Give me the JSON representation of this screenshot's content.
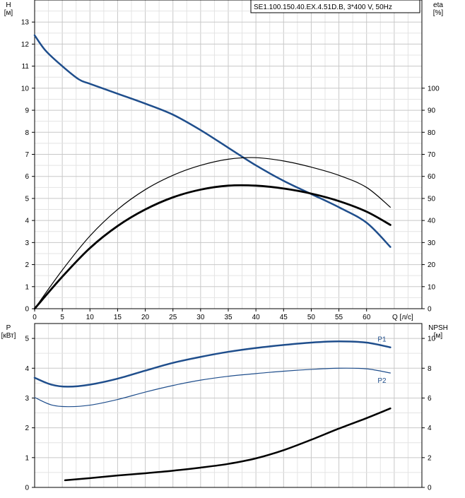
{
  "chart_data": [
    {
      "type": "line",
      "title": "SE1.100.150.40.EX.4.51D.B, 3*400 V, 50Hz",
      "xlabel": "Q [л/с]",
      "ylabel_left": "H\n[м]",
      "ylabel_right": "eta\n[%]",
      "xlim": [
        0,
        70
      ],
      "ylim": [
        0,
        14
      ],
      "ylim_right": [
        0,
        140
      ],
      "x_ticks": [
        "0",
        "5",
        "10",
        "15",
        "20",
        "25",
        "30",
        "35",
        "40",
        "45",
        "50",
        "55",
        "60"
      ],
      "y_ticks_left": [
        "0",
        "1",
        "2",
        "3",
        "4",
        "5",
        "6",
        "7",
        "8",
        "9",
        "10",
        "11",
        "12",
        "13"
      ],
      "y_ticks_right": [
        "0",
        "10",
        "20",
        "30",
        "40",
        "50",
        "60",
        "70",
        "80",
        "90",
        "100"
      ],
      "grid": true,
      "series": [
        {
          "name": "H",
          "axis": "left",
          "color": "#1f4e8c",
          "width": 2.5,
          "x": [
            0,
            2,
            5,
            8,
            10,
            15,
            20,
            25,
            30,
            35,
            40,
            45,
            50,
            55,
            60,
            64.3
          ],
          "y": [
            12.4,
            11.7,
            11.0,
            10.4,
            10.2,
            9.75,
            9.3,
            8.8,
            8.1,
            7.3,
            6.5,
            5.8,
            5.2,
            4.6,
            3.9,
            2.8
          ]
        },
        {
          "name": "",
          "axis": "right",
          "color": "#000000",
          "width": 1.2,
          "x": [
            0,
            5,
            10,
            15,
            20,
            25,
            30,
            35,
            40,
            45,
            50,
            55,
            60,
            64.3
          ],
          "y": [
            0,
            17.5,
            33,
            45,
            54,
            60.5,
            65,
            67.8,
            68.5,
            67,
            64.2,
            60.5,
            55,
            46
          ]
        },
        {
          "name": "",
          "axis": "right",
          "color": "#000000",
          "width": 2.8,
          "x": [
            0,
            5,
            10,
            15,
            20,
            25,
            30,
            35,
            40,
            45,
            50,
            55,
            60,
            64.3
          ],
          "y": [
            0,
            14.5,
            27.5,
            37.5,
            45,
            50.5,
            54,
            55.8,
            55.8,
            54.5,
            52.2,
            48.8,
            44,
            38
          ]
        }
      ]
    },
    {
      "type": "line",
      "title": "",
      "xlabel": "",
      "ylabel_left": "P\n[кВт]",
      "ylabel_right": "NPSH\n[м]",
      "xlim": [
        0,
        70
      ],
      "ylim": [
        0,
        5.5
      ],
      "ylim_right": [
        0,
        11
      ],
      "y_ticks_left": [
        "0",
        "1",
        "2",
        "3",
        "4",
        "5"
      ],
      "y_ticks_right": [
        "0",
        "2",
        "4",
        "6",
        "8",
        "10"
      ],
      "grid": true,
      "series": [
        {
          "name": "P1",
          "axis": "left",
          "color": "#1f4e8c",
          "width": 2.5,
          "x": [
            0,
            3,
            6,
            10,
            15,
            20,
            25,
            30,
            35,
            40,
            45,
            50,
            55,
            60,
            64.3
          ],
          "y": [
            3.68,
            3.45,
            3.38,
            3.45,
            3.65,
            3.92,
            4.18,
            4.38,
            4.55,
            4.68,
            4.78,
            4.86,
            4.9,
            4.86,
            4.7
          ]
        },
        {
          "name": "P2",
          "axis": "left",
          "color": "#1f4e8c",
          "width": 1.2,
          "x": [
            0,
            3,
            6,
            10,
            15,
            20,
            25,
            30,
            35,
            40,
            45,
            50,
            55,
            60,
            64.3
          ],
          "y": [
            3.02,
            2.77,
            2.71,
            2.76,
            2.95,
            3.2,
            3.42,
            3.6,
            3.73,
            3.82,
            3.9,
            3.96,
            4.0,
            3.98,
            3.84
          ]
        },
        {
          "name": "",
          "axis": "right",
          "color": "#000000",
          "width": 2.5,
          "x": [
            5.5,
            10,
            15,
            20,
            25,
            30,
            35,
            40,
            45,
            50,
            55,
            60,
            64.3
          ],
          "y": [
            0.48,
            0.62,
            0.8,
            0.95,
            1.12,
            1.33,
            1.58,
            1.95,
            2.5,
            3.2,
            3.95,
            4.65,
            5.3
          ]
        }
      ]
    }
  ]
}
